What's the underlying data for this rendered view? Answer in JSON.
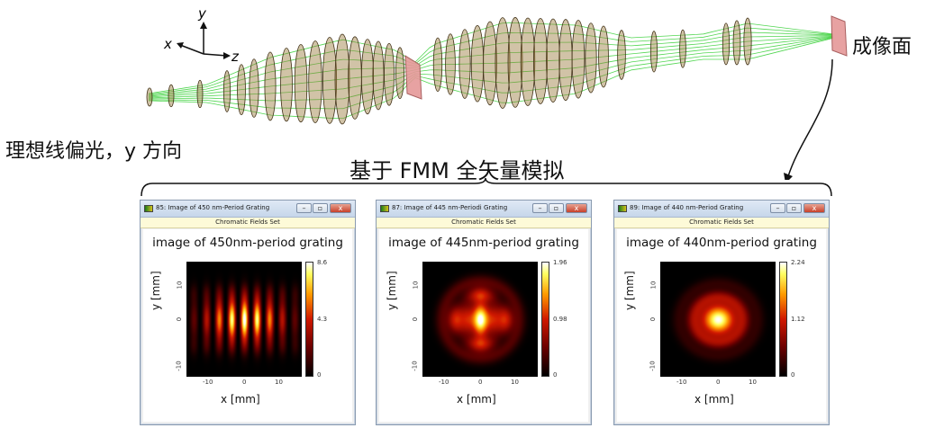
{
  "labels": {
    "image_plane": "成像面",
    "source": "理想线偏光，y 方向",
    "simulation": "基于 FMM 全矢量模拟"
  },
  "axes_gizmo": {
    "x": "x",
    "y": "y",
    "z": "z"
  },
  "windows": [
    {
      "title": "85: Image of 450 nm-Period Grating",
      "subtitle": "Chromatic Fields Set",
      "plot_title": "image of 450nm-period grating",
      "xlabel": "x [mm]",
      "ylabel": "y [mm]",
      "xticks": [
        "-10",
        "0",
        "10"
      ],
      "yticks": [
        "-10",
        "0",
        "10"
      ],
      "colorbar_ticks": [
        "8.6",
        "4.3",
        "0"
      ],
      "pattern": "fringes"
    },
    {
      "title": "87: Image of 445 nm-Periodi Grating",
      "subtitle": "Chromatic Fields Set",
      "plot_title": "image of 445nm-period grating",
      "xlabel": "x [mm]",
      "ylabel": "y [mm]",
      "xticks": [
        "-10",
        "0",
        "10"
      ],
      "yticks": [
        "-10",
        "0",
        "10"
      ],
      "colorbar_ticks": [
        "1.96",
        "0.98",
        "0"
      ],
      "pattern": "blob-halo"
    },
    {
      "title": "89: Image of 440 nm-Period Grating",
      "subtitle": "Chromatic Fields Set",
      "plot_title": "image of 440nm-period grating",
      "xlabel": "x [mm]",
      "ylabel": "y [mm]",
      "xticks": [
        "-10",
        "0",
        "10"
      ],
      "yticks": [
        "-10",
        "0",
        "10"
      ],
      "colorbar_ticks": [
        "2.24",
        "1.12",
        "0"
      ],
      "pattern": "blob"
    }
  ],
  "window_buttons": {
    "min": "–",
    "max": "▫",
    "close": "x"
  },
  "colors": {
    "lens_fill": "#9a7a3c",
    "ray_color": "#3fd23f",
    "prism_fill": "#e59898"
  }
}
